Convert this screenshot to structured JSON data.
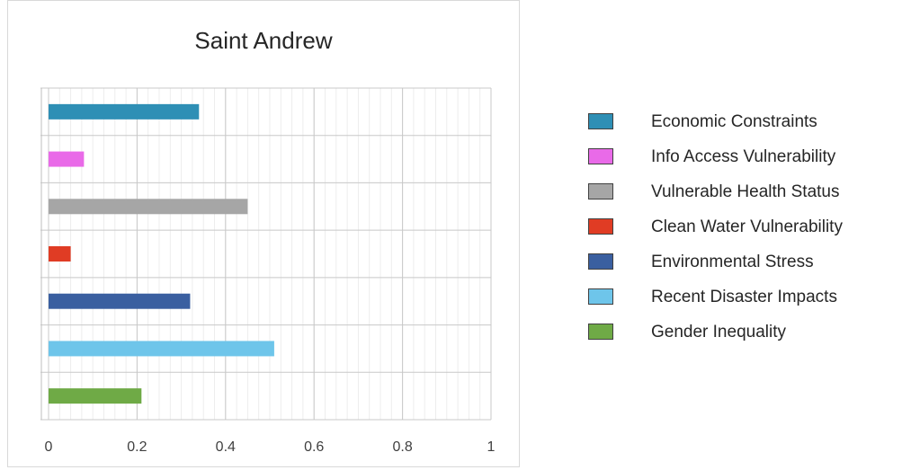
{
  "chart_data": {
    "type": "bar",
    "orientation": "horizontal",
    "title": "Saint Andrew",
    "xlabel": "",
    "ylabel": "",
    "xlim": [
      0,
      1
    ],
    "x_ticks": [
      "0",
      "0.2",
      "0.4",
      "0.6",
      "0.8",
      "1"
    ],
    "grid": true,
    "legend_position": "right",
    "categories": [
      "Economic Constraints",
      "Info Access Vulnerability",
      "Vulnerable Health Status",
      "Clean Water Vulnerability",
      "Environmental Stress",
      "Recent Disaster Impacts",
      "Gender Inequality"
    ],
    "values": [
      0.34,
      0.08,
      0.45,
      0.05,
      0.32,
      0.51,
      0.21
    ],
    "colors": [
      "#2e8fb5",
      "#e96ae8",
      "#a6a6a6",
      "#e03c24",
      "#3a5fa0",
      "#6ec5ea",
      "#6faa46"
    ]
  }
}
